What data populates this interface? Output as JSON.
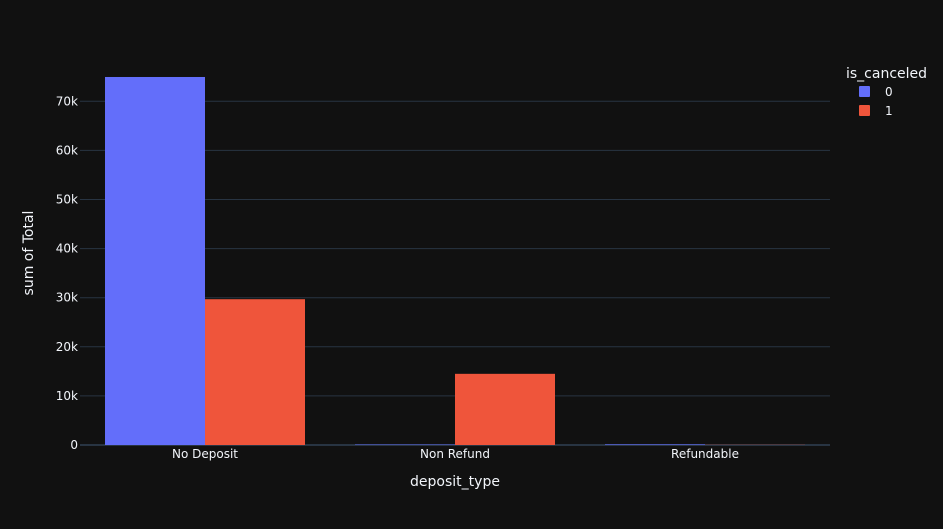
{
  "colors": {
    "background": "#111111",
    "grid": "#283442",
    "text": "#f2f5fa",
    "series_0": "#636efa",
    "series_1": "#ef553b"
  },
  "chart_data": {
    "type": "bar",
    "barmode": "group",
    "categories": [
      "No Deposit",
      "Non Refund",
      "Refundable"
    ],
    "series": [
      {
        "name": "0",
        "values": [
          74947,
          93,
          126
        ]
      },
      {
        "name": "1",
        "values": [
          29694,
          14494,
          36
        ]
      }
    ],
    "xlabel": "deposit_type",
    "ylabel": "sum of Total",
    "ylim": [
      0,
      78000
    ],
    "y_ticks": [
      0,
      10000,
      20000,
      30000,
      40000,
      50000,
      60000,
      70000
    ],
    "y_tick_labels": [
      "0",
      "10k",
      "20k",
      "30k",
      "40k",
      "50k",
      "60k",
      "70k"
    ],
    "grid": true,
    "legend": {
      "title": "is_canceled",
      "placement": "top-right"
    }
  }
}
